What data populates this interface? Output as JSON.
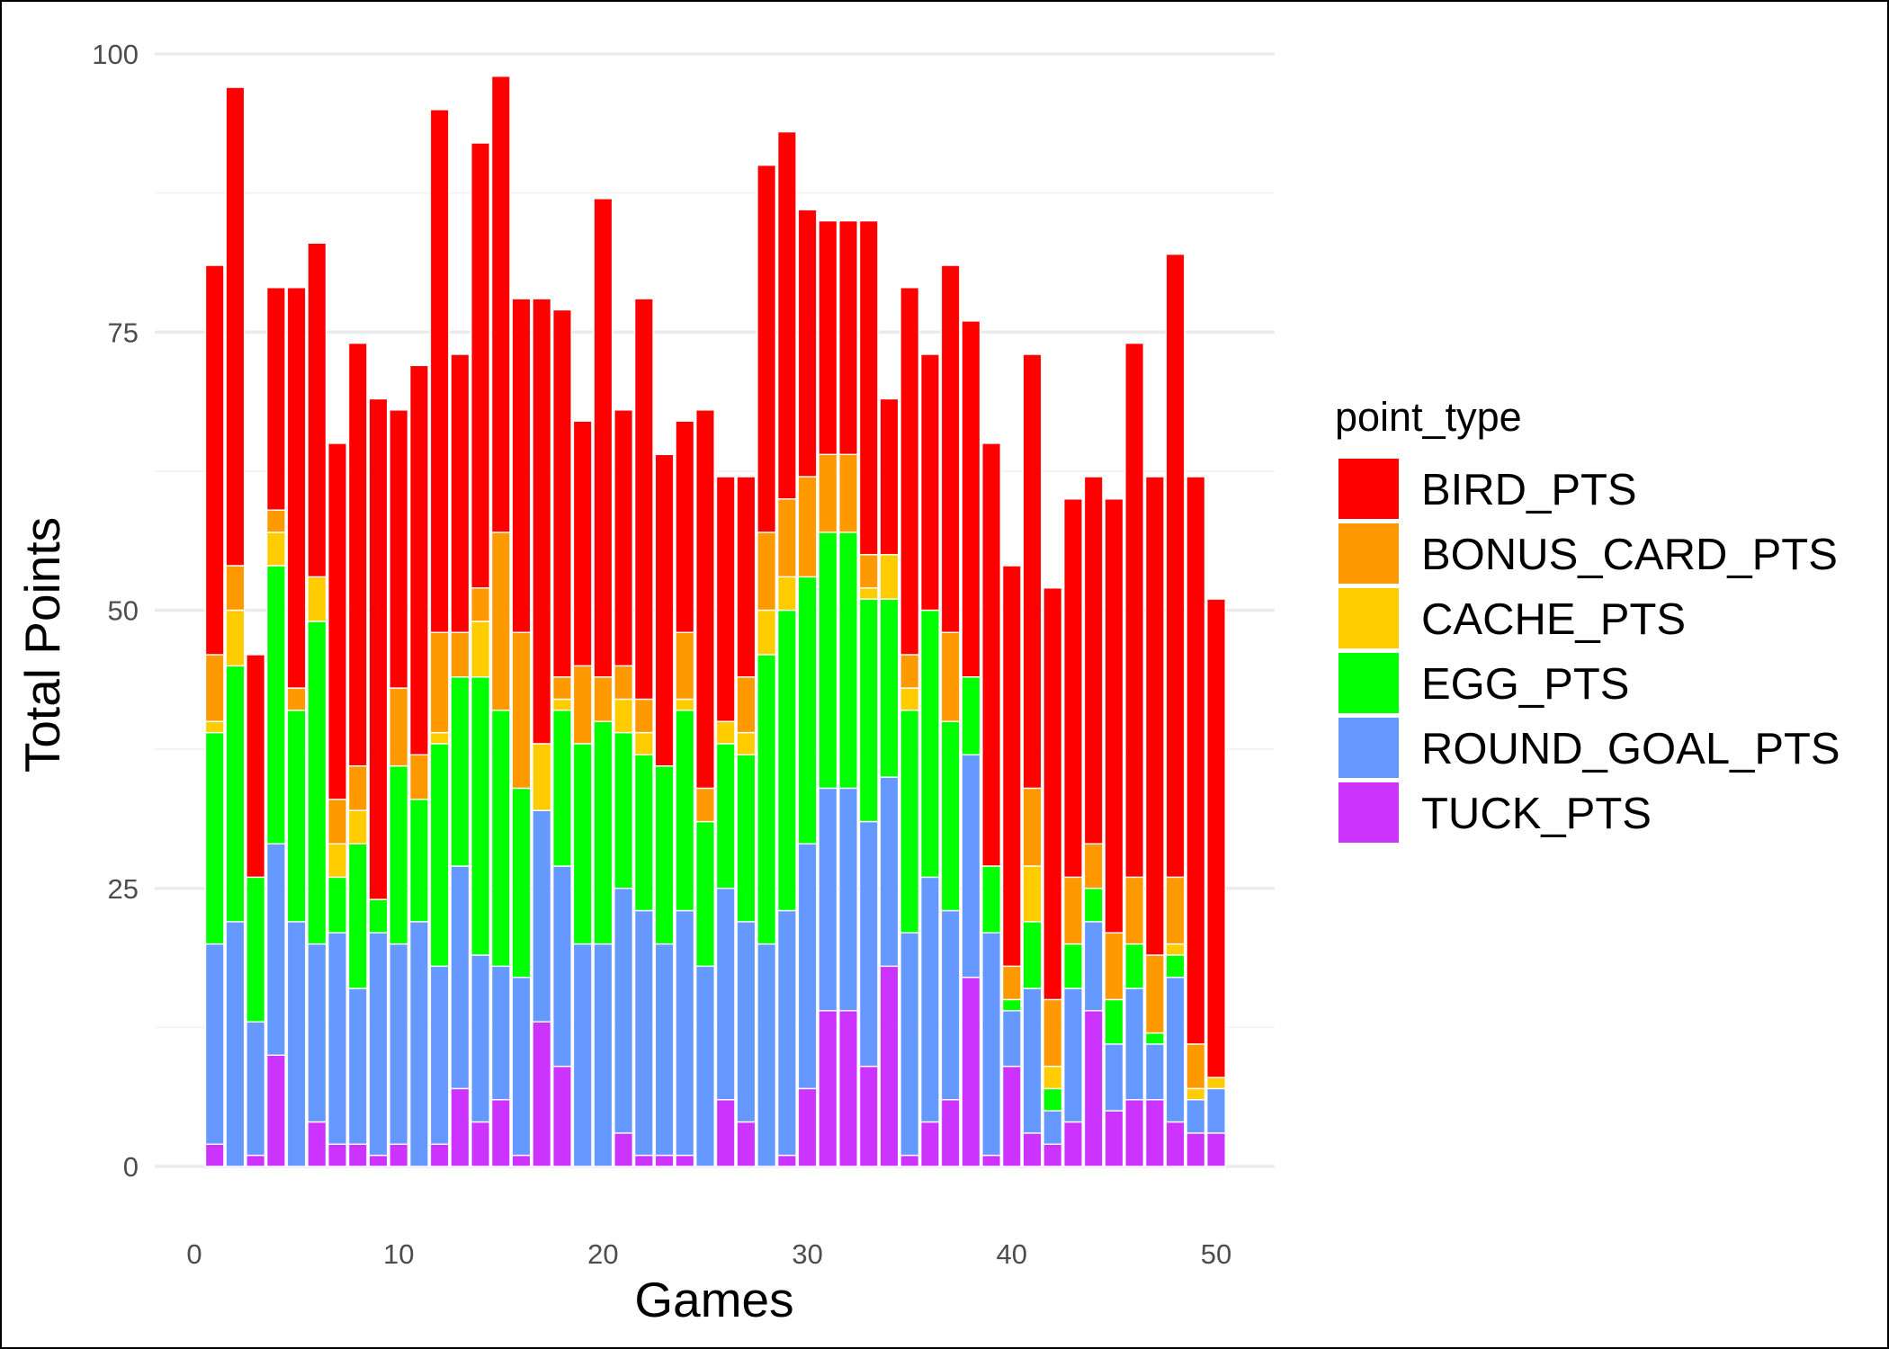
{
  "chart_data": {
    "type": "bar",
    "stacked": true,
    "xlabel": "Games",
    "ylabel": "Total Points",
    "xlim": [
      0,
      50
    ],
    "ylim": [
      0,
      100
    ],
    "x_ticks": [
      0,
      10,
      20,
      30,
      40,
      50
    ],
    "y_ticks": [
      0,
      25,
      50,
      75,
      100
    ],
    "grid": true,
    "legend": {
      "title": "point_type",
      "placement": "right"
    },
    "x": [
      1,
      2,
      3,
      4,
      5,
      6,
      7,
      8,
      9,
      10,
      11,
      12,
      13,
      14,
      15,
      16,
      17,
      18,
      19,
      20,
      21,
      22,
      23,
      24,
      25,
      26,
      27,
      28,
      29,
      30,
      31,
      32,
      33,
      34,
      35,
      36,
      37,
      38,
      39,
      40,
      41,
      42,
      43,
      44,
      45,
      46,
      47,
      48,
      49,
      50
    ],
    "series": [
      {
        "name": "TUCK_PTS",
        "color": "#CC33FF",
        "values": [
          2,
          0,
          1,
          10,
          0,
          4,
          2,
          2,
          1,
          2,
          0,
          2,
          7,
          4,
          6,
          1,
          13,
          9,
          0,
          0,
          3,
          1,
          1,
          1,
          0,
          6,
          4,
          0,
          1,
          7,
          14,
          14,
          9,
          18,
          1,
          4,
          6,
          17,
          1,
          9,
          3,
          2,
          4,
          14,
          5,
          6,
          6,
          4,
          3,
          3
        ]
      },
      {
        "name": "ROUND_GOAL_PTS",
        "color": "#6699FF",
        "values": [
          18,
          22,
          12,
          19,
          22,
          16,
          19,
          14,
          20,
          18,
          22,
          16,
          20,
          15,
          12,
          16,
          19,
          18,
          20,
          20,
          22,
          22,
          19,
          22,
          18,
          19,
          18,
          20,
          22,
          22,
          20,
          20,
          22,
          17,
          20,
          22,
          17,
          20,
          20,
          5,
          13,
          3,
          12,
          8,
          6,
          10,
          5,
          13,
          3,
          4
        ]
      },
      {
        "name": "EGG_PTS",
        "color": "#00FF00",
        "values": [
          19,
          23,
          13,
          25,
          19,
          29,
          5,
          13,
          3,
          16,
          11,
          20,
          17,
          25,
          23,
          17,
          0,
          14,
          18,
          20,
          14,
          14,
          16,
          18,
          13,
          13,
          15,
          26,
          27,
          24,
          23,
          23,
          20,
          16,
          20,
          24,
          17,
          7,
          6,
          1,
          6,
          2,
          4,
          3,
          4,
          4,
          1,
          2,
          0,
          0
        ]
      },
      {
        "name": "CACHE_PTS",
        "color": "#FFCC00",
        "values": [
          1,
          5,
          0,
          3,
          0,
          4,
          3,
          3,
          0,
          0,
          0,
          1,
          0,
          5,
          0,
          0,
          6,
          1,
          0,
          0,
          3,
          2,
          0,
          1,
          0,
          2,
          2,
          4,
          3,
          0,
          0,
          0,
          1,
          4,
          2,
          0,
          0,
          0,
          0,
          0,
          5,
          2,
          0,
          0,
          0,
          0,
          0,
          1,
          1,
          1
        ]
      },
      {
        "name": "BONUS_CARD_PTS",
        "color": "#FF9900",
        "values": [
          6,
          4,
          0,
          2,
          2,
          0,
          4,
          4,
          0,
          7,
          4,
          9,
          4,
          3,
          16,
          14,
          0,
          2,
          7,
          4,
          3,
          3,
          0,
          6,
          3,
          0,
          5,
          7,
          7,
          9,
          7,
          7,
          3,
          0,
          3,
          0,
          8,
          0,
          0,
          3,
          7,
          6,
          6,
          4,
          6,
          6,
          7,
          6,
          4,
          0
        ]
      },
      {
        "name": "BIRD_PTS",
        "color": "#FF0000",
        "values": [
          35,
          43,
          20,
          20,
          36,
          30,
          32,
          38,
          45,
          25,
          35,
          47,
          25,
          40,
          41,
          30,
          40,
          33,
          22,
          43,
          23,
          36,
          28,
          19,
          34,
          22,
          18,
          33,
          33,
          24,
          21,
          21,
          30,
          14,
          33,
          23,
          33,
          32,
          38,
          36,
          39,
          37,
          34,
          33,
          39,
          48,
          43,
          56,
          51,
          43
        ]
      }
    ]
  }
}
